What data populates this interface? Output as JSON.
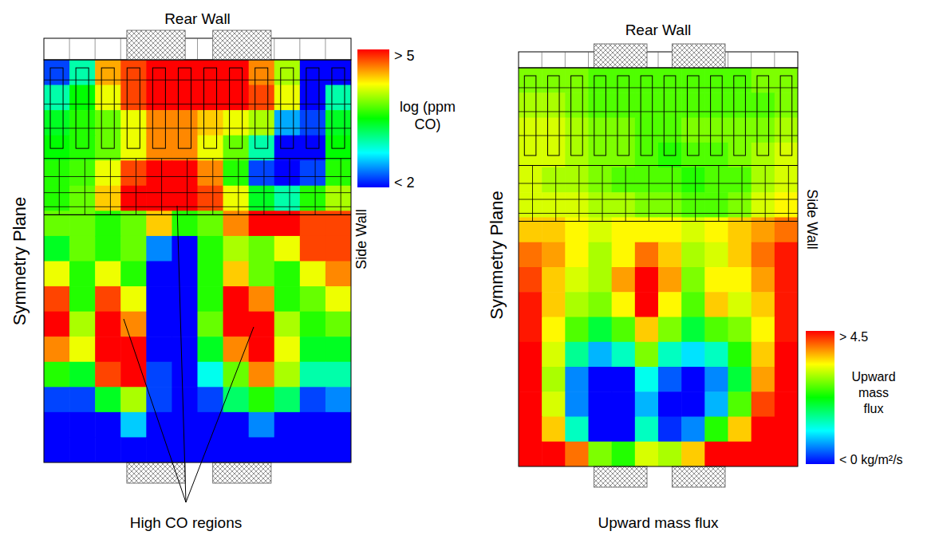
{
  "chart_data": [
    {
      "type": "heatmap",
      "top_label": "Rear Wall",
      "left_label": "Symmetry Plane",
      "right_label": "Side Wall",
      "annotation": "High CO regions",
      "xlim": [
        0,
        12
      ],
      "ylim": [
        0,
        16
      ],
      "tick_labels": false,
      "colors": [
        "#0000ff",
        "#00ffff",
        "#00ff00",
        "#ffff00",
        "#ff0000"
      ],
      "colorbar_label": "log (ppm CO)",
      "colorbar_range": [
        2,
        5
      ],
      "colorbar_ticks": [
        {
          "value": 5,
          "label": "> 5"
        },
        {
          "value": 2,
          "label": "< 2"
        }
      ],
      "cells": [
        [
          2.2,
          3.0,
          4.5,
          4.8,
          5,
          5,
          5,
          5,
          4.6,
          4.0,
          2,
          2
        ],
        [
          3,
          3.5,
          4.2,
          4.8,
          5,
          5,
          5,
          5,
          4.8,
          4.2,
          2,
          3
        ],
        [
          3.4,
          3.6,
          3.8,
          4.2,
          4.6,
          4.6,
          4.4,
          4.2,
          4.0,
          2.5,
          2.2,
          3.4
        ],
        [
          3.5,
          3.6,
          3.8,
          4.2,
          4.6,
          4.6,
          4.2,
          3.8,
          3.0,
          2,
          2,
          3.5
        ],
        [
          3.6,
          3.7,
          4.2,
          4.8,
          5,
          5,
          4.6,
          3.6,
          2.2,
          2,
          2.2,
          3.6
        ],
        [
          3.6,
          3.8,
          4.4,
          5,
          5,
          5,
          4.8,
          4.2,
          3.4,
          3.0,
          3.6,
          4.0
        ],
        [
          3.8,
          3.8,
          3.6,
          3.8,
          4.4,
          3.6,
          3.8,
          4.6,
          5,
          5,
          4.8,
          4.8
        ],
        [
          3.4,
          3.8,
          3.6,
          3.8,
          2.4,
          2,
          3.6,
          4.0,
          3.8,
          4.2,
          4.8,
          4.8
        ],
        [
          4.2,
          3.6,
          4.2,
          3.6,
          2,
          2,
          3.6,
          4.4,
          3.8,
          3.6,
          4.2,
          4.6
        ],
        [
          4.8,
          3.6,
          4.8,
          4.2,
          2,
          2,
          3.6,
          5,
          4.6,
          3.6,
          3.8,
          4.2
        ],
        [
          5,
          4,
          5,
          4.6,
          2,
          2,
          3.8,
          5,
          5,
          4.0,
          3.6,
          3.8
        ],
        [
          4.6,
          4.2,
          5,
          5,
          2,
          2,
          3.4,
          4.6,
          5,
          4.2,
          3.4,
          3.4
        ],
        [
          3.6,
          3.4,
          4.8,
          5,
          2.2,
          2,
          2.8,
          3.8,
          4.6,
          4.0,
          3.0,
          3.0
        ],
        [
          2.2,
          2.2,
          3.4,
          4.0,
          2.2,
          2,
          2.2,
          3.2,
          3.6,
          3.2,
          2.2,
          2.4
        ],
        [
          2,
          2,
          2,
          2.6,
          2,
          2,
          2,
          2,
          2.4,
          2,
          2,
          2
        ],
        [
          2,
          2,
          2,
          2,
          2,
          2,
          2,
          2,
          2,
          2,
          2,
          2
        ]
      ]
    },
    {
      "type": "heatmap",
      "top_label": "Rear Wall",
      "left_label": "Symmetry Plane",
      "right_label": "Side Wall",
      "caption": "Upward mass flux",
      "xlim": [
        0,
        12
      ],
      "ylim": [
        0,
        16
      ],
      "tick_labels": false,
      "colors": [
        "#0000ff",
        "#00ffff",
        "#00ff00",
        "#ffff00",
        "#ff0000"
      ],
      "colorbar_label": "Upward mass flux",
      "colorbar_range": [
        0,
        4.5
      ],
      "colorbar_ticks": [
        {
          "value": 4.5,
          "label": "> 4.5"
        },
        {
          "value": 0,
          "label": "< 0 kg/m²/s"
        }
      ],
      "cells": [
        [
          2.8,
          2.8,
          2.8,
          2.6,
          2.6,
          2.6,
          2.6,
          2.6,
          2.6,
          2.6,
          2.8,
          2.8
        ],
        [
          3.0,
          3.0,
          2.8,
          2.6,
          2.6,
          2.6,
          2.6,
          2.6,
          2.6,
          2.6,
          2.6,
          2.8
        ],
        [
          3.2,
          3.2,
          3.0,
          2.8,
          2.8,
          2.6,
          2.6,
          2.8,
          2.8,
          2.8,
          2.8,
          3.0
        ],
        [
          3.2,
          3.2,
          3.0,
          2.8,
          2.8,
          2.6,
          2.4,
          2.6,
          2.6,
          2.8,
          3.0,
          3.2
        ],
        [
          3.2,
          3.0,
          3.0,
          2.8,
          2.6,
          2.6,
          2.6,
          2.4,
          2.6,
          2.6,
          3.0,
          3.2
        ],
        [
          3.2,
          3.2,
          3.2,
          3.0,
          3.0,
          2.8,
          2.8,
          2.6,
          2.6,
          2.8,
          3.2,
          3.4
        ],
        [
          3.6,
          3.6,
          3.4,
          3.2,
          3.4,
          3.4,
          3.4,
          3.2,
          3.4,
          3.6,
          3.8,
          4.0
        ],
        [
          4.0,
          3.8,
          3.4,
          3.0,
          3.4,
          4.0,
          3.6,
          3.0,
          3.2,
          3.6,
          4.0,
          4.4
        ],
        [
          4.2,
          3.6,
          3.2,
          3.0,
          3.8,
          4.5,
          3.8,
          2.8,
          3.4,
          3.4,
          3.8,
          4.4
        ],
        [
          4.4,
          3.6,
          3.0,
          2.8,
          3.4,
          4.5,
          3.4,
          2.6,
          3.6,
          3.2,
          3.6,
          4.4
        ],
        [
          4.4,
          3.4,
          2.6,
          2.0,
          2.6,
          3.6,
          2.8,
          2.0,
          2.6,
          2.8,
          3.4,
          4.4
        ],
        [
          4.5,
          3.2,
          1.6,
          0.8,
          1.4,
          2.8,
          1.4,
          1.0,
          1.4,
          2.4,
          3.6,
          4.5
        ],
        [
          4.5,
          3.0,
          0.6,
          0,
          0,
          1.2,
          0.4,
          0,
          0.6,
          2.0,
          3.8,
          4.5
        ],
        [
          4.5,
          3.2,
          0.6,
          0,
          0,
          0.8,
          0,
          0,
          0.8,
          2.6,
          4.2,
          4.5
        ],
        [
          4.5,
          3.6,
          1.4,
          0,
          0,
          1.4,
          0.2,
          0.6,
          2.4,
          3.6,
          4.5,
          4.5
        ],
        [
          4.5,
          4.5,
          4.0,
          2.8,
          2.4,
          3.2,
          3.0,
          3.6,
          4.5,
          4.5,
          4.5,
          4.5
        ]
      ]
    }
  ]
}
